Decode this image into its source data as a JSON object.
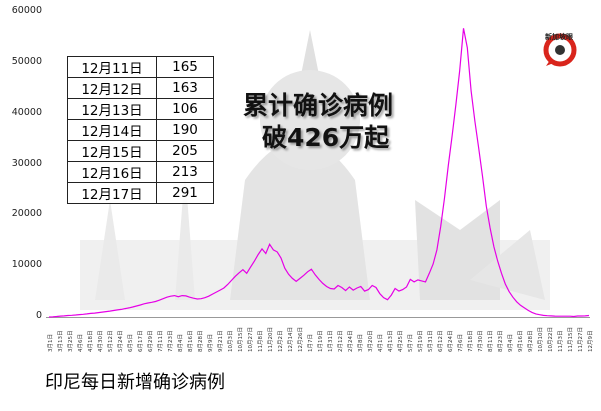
{
  "chart_data": {
    "type": "line",
    "xlabel": "",
    "ylabel": "",
    "ylim": [
      0,
      60000
    ],
    "yticks": [
      0,
      10000,
      20000,
      30000,
      40000,
      50000,
      60000
    ],
    "grid": false,
    "line_color": "#e600e6",
    "x_tick_labels": [
      "3月1日",
      "3月13日",
      "3月25日",
      "4月6日",
      "4月18日",
      "4月30日",
      "5月12日",
      "5月24日",
      "6月5日",
      "6月17日",
      "6月29日",
      "7月11日",
      "7月23日",
      "8月4日",
      "8月16日",
      "8月28日",
      "9月9日",
      "9月21日",
      "10月3日",
      "10月15日",
      "10月27日",
      "11月8日",
      "11月20日",
      "12月2日",
      "12月14日",
      "12月26日",
      "1月7日",
      "1月19日",
      "1月31日",
      "2月12日",
      "2月24日",
      "3月8日",
      "3月20日",
      "4月1日",
      "4月13日",
      "4月25日",
      "5月7日",
      "5月19日",
      "5月31日",
      "6月12日",
      "6月24日",
      "7月6日",
      "7月18日",
      "7月30日",
      "8月11日",
      "8月23日",
      "9月4日",
      "9月16日",
      "9月28日",
      "10月10日",
      "10月22日",
      "11月3日",
      "11月15日",
      "11月27日",
      "12月9日"
    ],
    "series": [
      {
        "values": [
          0,
          40,
          100,
          170,
          220,
          290,
          340,
          400,
          470,
          540,
          610,
          700,
          770,
          860,
          960,
          1060,
          1160,
          1270,
          1390,
          1500,
          1650,
          1800,
          1960,
          2160,
          2360,
          2600,
          2750,
          2900,
          3050,
          3300,
          3600,
          3900,
          4100,
          4200,
          4000,
          4200,
          4150,
          3900,
          3700,
          3550,
          3600,
          3800,
          4100,
          4500,
          4900,
          5300,
          5700,
          6400,
          7200,
          8000,
          8700,
          9300,
          8600,
          9800,
          11000,
          12300,
          13400,
          12500,
          14300,
          13200,
          12800,
          11600,
          9600,
          8400,
          7600,
          7000,
          7600,
          8200,
          8900,
          9400,
          8300,
          7400,
          6600,
          6000,
          5600,
          5500,
          6200,
          5800,
          5200,
          5900,
          5300,
          5700,
          6000,
          5100,
          5400,
          6200,
          5800,
          4600,
          3800,
          3400,
          4300,
          5600,
          5100,
          5400,
          5900,
          7400,
          6900,
          7300,
          7100,
          6900,
          8600,
          10400,
          13200,
          17800,
          23400,
          29800,
          35600,
          41800,
          48500,
          56800,
          53000,
          44500,
          38500,
          33200,
          27700,
          21800,
          17500,
          13800,
          11000,
          8600,
          6500,
          5000,
          3900,
          3000,
          2300,
          1800,
          1300,
          900,
          600,
          450,
          320,
          250,
          220,
          180,
          160,
          150,
          165,
          163,
          106,
          190,
          205,
          213,
          291
        ]
      }
    ]
  },
  "table": {
    "rows": [
      {
        "date": "12月11日",
        "value": "165"
      },
      {
        "date": "12月12日",
        "value": "163"
      },
      {
        "date": "12月13日",
        "value": "106"
      },
      {
        "date": "12月14日",
        "value": "190"
      },
      {
        "date": "12月15日",
        "value": "205"
      },
      {
        "date": "12月16日",
        "value": "213"
      },
      {
        "date": "12月17日",
        "value": "291"
      }
    ]
  },
  "headline": {
    "line1": "累计确诊病例",
    "line2": "破426万起"
  },
  "caption": "印尼每日新增确诊病例",
  "logo_text": "新加坡眼",
  "colors": {
    "line": "#e600e6",
    "logo_red": "#d9251c",
    "bg_art": "#e6e6e6"
  }
}
